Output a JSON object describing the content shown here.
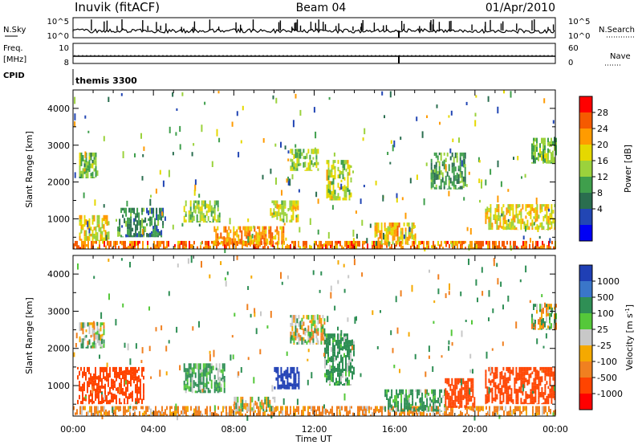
{
  "header": {
    "station": "Inuvik (fitACF)",
    "beam": "Beam 04",
    "date": "01/Apr/2010"
  },
  "status": {
    "nsky_label": "N.Sky",
    "nsearch_label": "N.Search",
    "noise_ticks": [
      "10^5",
      "10^0"
    ],
    "freq_label_top": "Freq.",
    "freq_label_unit": "[MHz]",
    "freq_ticks": [
      "10",
      "8"
    ],
    "nave_label": "Nave",
    "nave_ticks": [
      "60",
      "0"
    ],
    "cpid_label": "CPID",
    "cpid_value": "themis 3300"
  },
  "x_ticks": [
    "00:00",
    "04:00",
    "08:00",
    "12:00",
    "16:00",
    "20:00",
    "00:00"
  ],
  "x_label": "Time UT",
  "y_ticks": [
    "1000",
    "2000",
    "3000",
    "4000"
  ],
  "y_label": "Slant Range [km]",
  "power_colorbar": {
    "label": "Power [dB]",
    "ticks": [
      "28",
      "24",
      "20",
      "16",
      "12",
      "8",
      "4"
    ],
    "colors": [
      "#ff0000",
      "#f55a00",
      "#ff9b00",
      "#e5d800",
      "#9bd23c",
      "#3f9f4c",
      "#2a6e4f",
      "#2246b4",
      "#0000f5"
    ]
  },
  "velocity_colorbar": {
    "label": "Velocity [m s",
    "label_sup": "-1",
    "label_end": "]",
    "ticks": [
      "1000",
      "500",
      "100",
      "25",
      "-25",
      "-100",
      "-500",
      "-1000"
    ],
    "colors": [
      "#1f3fb5",
      "#3a76c9",
      "#2f8f55",
      "#55c83a",
      "#c8c8c8",
      "#f5a900",
      "#f08020",
      "#ff4400",
      "#ff0000"
    ]
  },
  "chart_data": {
    "type": "heatmap",
    "x_range_hours": [
      0,
      24
    ],
    "y_range_km": [
      180,
      4500
    ],
    "panels": [
      {
        "name": "Power",
        "regions": [
          {
            "t": [
              0.0,
              24.0
            ],
            "r": [
              180,
              400
            ],
            "v": 26
          },
          {
            "t": [
              0.3,
              1.8
            ],
            "r": [
              400,
              1100
            ],
            "v": 20
          },
          {
            "t": [
              0.3,
              1.2
            ],
            "r": [
              2100,
              2800
            ],
            "v": 14
          },
          {
            "t": [
              2.2,
              4.5
            ],
            "r": [
              500,
              1300
            ],
            "v": 10
          },
          {
            "t": [
              5.5,
              7.3
            ],
            "r": [
              900,
              1500
            ],
            "v": 16
          },
          {
            "t": [
              7.0,
              10.5
            ],
            "r": [
              300,
              800
            ],
            "v": 24
          },
          {
            "t": [
              9.8,
              11.2
            ],
            "r": [
              900,
              1500
            ],
            "v": 18
          },
          {
            "t": [
              10.8,
              12.2
            ],
            "r": [
              2300,
              2900
            ],
            "v": 16
          },
          {
            "t": [
              12.6,
              13.8
            ],
            "r": [
              1500,
              2600
            ],
            "v": 18
          },
          {
            "t": [
              15.0,
              17.0
            ],
            "r": [
              300,
              900
            ],
            "v": 22
          },
          {
            "t": [
              17.8,
              19.5
            ],
            "r": [
              1800,
              2800
            ],
            "v": 12
          },
          {
            "t": [
              20.5,
              24.0
            ],
            "r": [
              700,
              1400
            ],
            "v": 20
          },
          {
            "t": [
              22.8,
              24.0
            ],
            "r": [
              2500,
              3200
            ],
            "v": 14
          }
        ]
      },
      {
        "name": "Velocity",
        "regions": [
          {
            "t": [
              0.0,
              24.0
            ],
            "r": [
              180,
              450
            ],
            "v": -100
          },
          {
            "t": [
              0.2,
              3.5
            ],
            "r": [
              500,
              1500
            ],
            "v": -500
          },
          {
            "t": [
              0.3,
              1.5
            ],
            "r": [
              2000,
              2700
            ],
            "v": 0
          },
          {
            "t": [
              5.5,
              7.5
            ],
            "r": [
              800,
              1600
            ],
            "v": 100
          },
          {
            "t": [
              8.0,
              10.0
            ],
            "r": [
              300,
              700
            ],
            "v": 0
          },
          {
            "t": [
              10.0,
              11.2
            ],
            "r": [
              900,
              1500
            ],
            "v": 1000
          },
          {
            "t": [
              10.8,
              12.5
            ],
            "r": [
              2100,
              2900
            ],
            "v": 0
          },
          {
            "t": [
              12.5,
              14.0
            ],
            "r": [
              1000,
              2400
            ],
            "v": 100
          },
          {
            "t": [
              15.5,
              18.5
            ],
            "r": [
              300,
              900
            ],
            "v": 100
          },
          {
            "t": [
              18.5,
              20.0
            ],
            "r": [
              400,
              1200
            ],
            "v": -500
          },
          {
            "t": [
              20.5,
              24.0
            ],
            "r": [
              500,
              1500
            ],
            "v": -500
          },
          {
            "t": [
              22.8,
              24.0
            ],
            "r": [
              2500,
              3200
            ],
            "v": 0
          }
        ]
      }
    ]
  }
}
